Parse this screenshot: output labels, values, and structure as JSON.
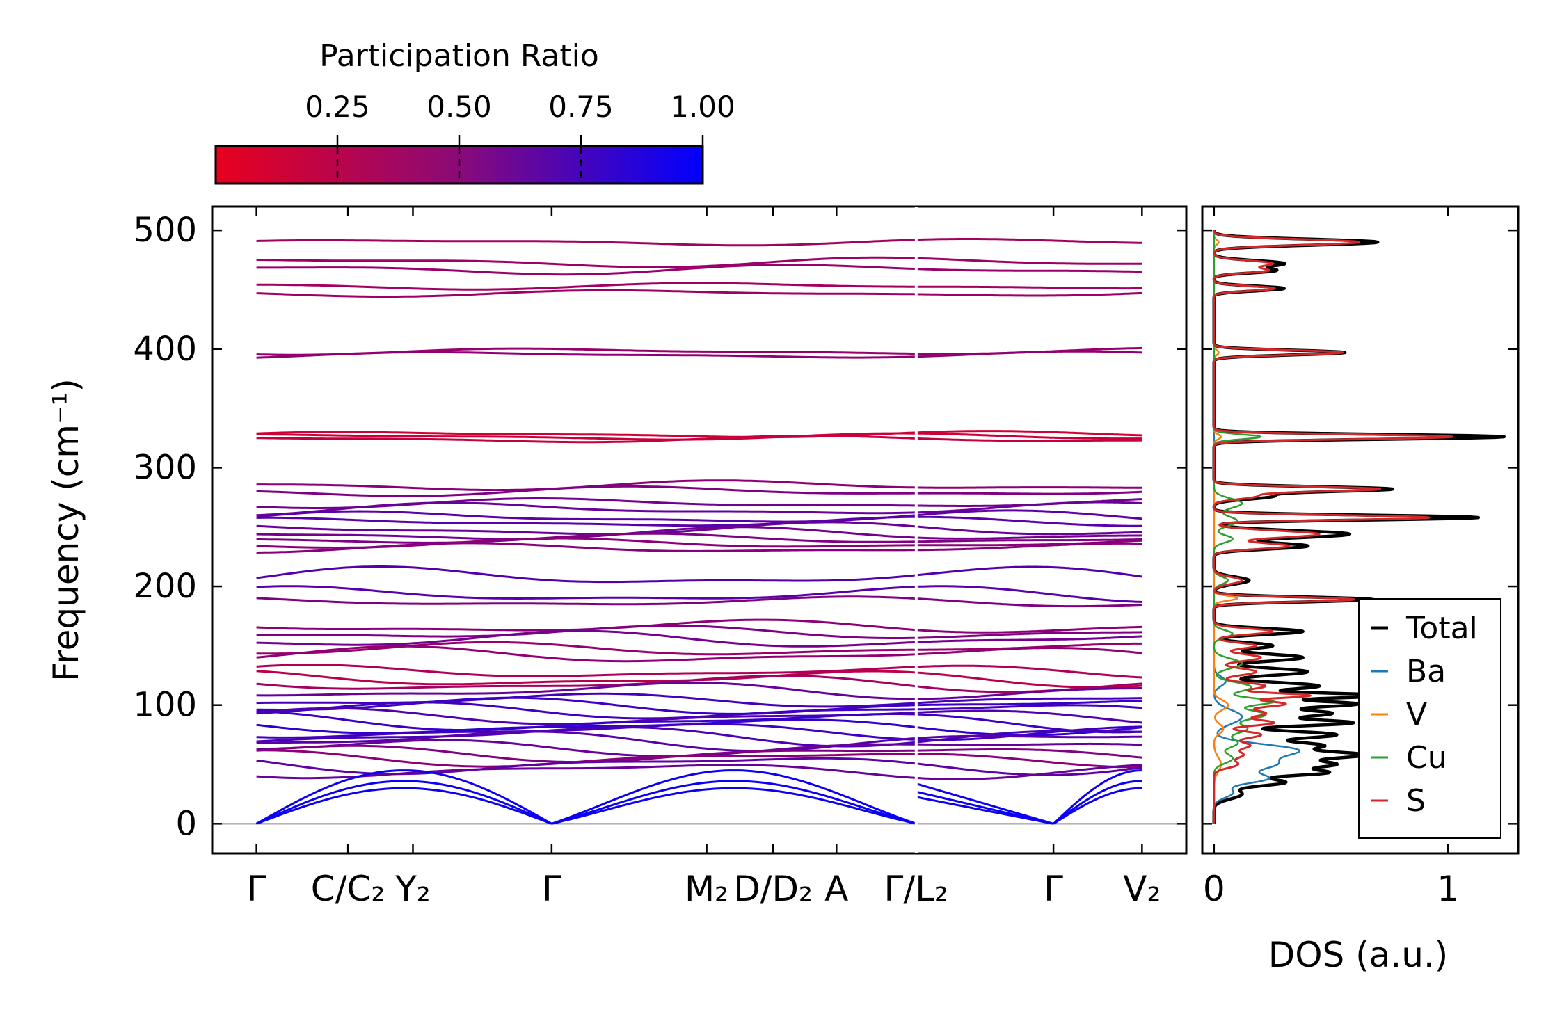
{
  "colorbar": {
    "title": "Participation Ratio",
    "min": 0.0,
    "max": 1.0,
    "ticks": [
      0.25,
      0.5,
      0.75,
      1.0
    ],
    "tick_labels": [
      "0.25",
      "0.50",
      "0.75",
      "1.00"
    ],
    "color_low": "#e8001e",
    "color_high": "#0000ff"
  },
  "colors": {
    "total": "#000000",
    "Ba": "#1f77b4",
    "V": "#ff7f0e",
    "Cu": "#2ca02c",
    "S": "#d62728",
    "zero_line": "#888888"
  },
  "chart_data": [
    {
      "type": "line",
      "name": "phonon-band-structure",
      "ylabel": "Frequency (cm⁻¹)",
      "ylim": [
        -25,
        520
      ],
      "yticks": [
        0,
        100,
        200,
        300,
        400,
        500
      ],
      "ytick_labels": [
        "0",
        "100",
        "200",
        "300",
        "400",
        "500"
      ],
      "xlim": [
        -0.3,
        6.3
      ],
      "x_end": 6.0,
      "segment_break": 4.47,
      "kpath": [
        {
          "x": 0.0,
          "label": "Γ"
        },
        {
          "x": 0.62,
          "label": "C/C₂"
        },
        {
          "x": 1.06,
          "label": "Y₂"
        },
        {
          "x": 2.0,
          "label": "Γ"
        },
        {
          "x": 3.05,
          "label": "M₂"
        },
        {
          "x": 3.5,
          "label": "D/D₂"
        },
        {
          "x": 3.93,
          "label": "A"
        },
        {
          "x": 4.47,
          "label": "Γ/L₂"
        },
        {
          "x": 5.4,
          "label": "Γ"
        },
        {
          "x": 6.0,
          "label": "V₂"
        }
      ],
      "optical_bands": {
        "description": "Representative optical branches: base frequency (cm^-1), dispersion amplitude, participation ratio",
        "base_freq": [
          490,
          473,
          467,
          453,
          447,
          398,
          395,
          328,
          326,
          324,
          285,
          280,
          270,
          265,
          258,
          254,
          248,
          244,
          240,
          236,
          232,
          208,
          193,
          187,
          166,
          161,
          155,
          147,
          142,
          128,
          122,
          118,
          112,
          104,
          99,
          95,
          90,
          86,
          82,
          78,
          74,
          70,
          64,
          59,
          55,
          50,
          45
        ],
        "amplitude": [
          2,
          3,
          3,
          2,
          2,
          2,
          2,
          2,
          2,
          2,
          3,
          3,
          3,
          4,
          4,
          3,
          4,
          4,
          3,
          3,
          3,
          6,
          5,
          3,
          4,
          4,
          5,
          4,
          5,
          4,
          5,
          5,
          5,
          4,
          5,
          5,
          5,
          6,
          5,
          5,
          6,
          6,
          5,
          5,
          5,
          6,
          5
        ],
        "participation": [
          0.3,
          0.32,
          0.35,
          0.3,
          0.32,
          0.35,
          0.38,
          0.1,
          0.12,
          0.15,
          0.4,
          0.45,
          0.5,
          0.55,
          0.6,
          0.62,
          0.55,
          0.5,
          0.45,
          0.4,
          0.42,
          0.65,
          0.62,
          0.45,
          0.4,
          0.45,
          0.5,
          0.35,
          0.38,
          0.25,
          0.2,
          0.3,
          0.55,
          0.7,
          0.75,
          0.72,
          0.65,
          0.75,
          0.8,
          0.72,
          0.68,
          0.62,
          0.55,
          0.45,
          0.4,
          0.6,
          0.55
        ]
      },
      "acoustic_bands": {
        "description": "Acoustic branches vanishing at Gamma points, max frequency near zone boundary",
        "max_freq": [
          45,
          36,
          30
        ],
        "participation": [
          0.95,
          0.95,
          0.95
        ],
        "gamma_points": [
          0.0,
          2.0,
          4.47,
          5.4
        ]
      }
    },
    {
      "type": "line",
      "name": "density-of-states",
      "xlabel": "DOS (a.u.)",
      "xlim": [
        -0.05,
        1.3
      ],
      "xticks": [
        0,
        1
      ],
      "xtick_labels": [
        "0",
        "1"
      ],
      "ylim": [
        -25,
        520
      ],
      "legend_position": "lower-right",
      "legend": [
        "Total",
        "Ba",
        "V",
        "Cu",
        "S"
      ],
      "peaks": {
        "Total": [
          [
            490,
            0.7,
            2.5
          ],
          [
            472,
            0.3,
            2.5
          ],
          [
            466,
            0.25,
            2.0
          ],
          [
            451,
            0.3,
            2.0
          ],
          [
            397,
            0.56,
            2.0
          ],
          [
            326,
            1.24,
            2.0
          ],
          [
            282,
            0.75,
            2.0
          ],
          [
            276,
            0.25,
            2.5
          ],
          [
            258,
            1.13,
            2.0
          ],
          [
            244,
            0.58,
            3.0
          ],
          [
            234,
            0.4,
            2.5
          ],
          [
            205,
            0.15,
            3.0
          ],
          [
            189,
            0.68,
            2.0
          ],
          [
            162,
            0.38,
            2.5
          ],
          [
            150,
            0.25,
            2.5
          ],
          [
            140,
            0.38,
            3.0
          ],
          [
            128,
            0.4,
            3.0
          ],
          [
            116,
            0.45,
            3.0
          ],
          [
            108,
            0.72,
            2.0
          ],
          [
            101,
            0.6,
            2.5
          ],
          [
            93,
            0.5,
            3.0
          ],
          [
            85,
            0.58,
            2.5
          ],
          [
            75,
            0.52,
            3.0
          ],
          [
            66,
            0.45,
            3.0
          ],
          [
            58,
            0.62,
            3.0
          ],
          [
            50,
            0.5,
            3.0
          ],
          [
            43,
            0.45,
            2.5
          ],
          [
            35,
            0.3,
            3.0
          ],
          [
            25,
            0.12,
            4.0
          ]
        ],
        "Ba": [
          [
            120,
            0.05,
            4.0
          ],
          [
            90,
            0.12,
            6.0
          ],
          [
            62,
            0.35,
            5.0
          ],
          [
            50,
            0.25,
            5.0
          ],
          [
            38,
            0.22,
            4.0
          ],
          [
            26,
            0.08,
            4.0
          ]
        ],
        "V": [
          [
            490,
            0.02,
            2.0
          ],
          [
            397,
            0.02,
            2.0
          ],
          [
            326,
            0.03,
            2.0
          ],
          [
            190,
            0.1,
            2.0
          ],
          [
            100,
            0.06,
            4.0
          ],
          [
            80,
            0.04,
            4.0
          ],
          [
            50,
            0.03,
            6.0
          ]
        ],
        "Cu": [
          [
            326,
            0.2,
            2.0
          ],
          [
            270,
            0.12,
            4.0
          ],
          [
            255,
            0.1,
            4.0
          ],
          [
            240,
            0.08,
            3.0
          ],
          [
            205,
            0.06,
            3.0
          ],
          [
            160,
            0.08,
            3.0
          ],
          [
            135,
            0.12,
            4.0
          ],
          [
            115,
            0.16,
            4.0
          ],
          [
            103,
            0.25,
            3.0
          ],
          [
            92,
            0.22,
            4.0
          ],
          [
            80,
            0.14,
            4.0
          ],
          [
            68,
            0.1,
            4.0
          ],
          [
            55,
            0.08,
            4.0
          ]
        ],
        "S": [
          [
            490,
            0.62,
            2.5
          ],
          [
            472,
            0.25,
            2.5
          ],
          [
            466,
            0.22,
            2.0
          ],
          [
            451,
            0.26,
            2.0
          ],
          [
            397,
            0.55,
            2.0
          ],
          [
            326,
            1.02,
            2.0
          ],
          [
            282,
            0.7,
            2.0
          ],
          [
            276,
            0.18,
            2.5
          ],
          [
            258,
            0.92,
            2.0
          ],
          [
            244,
            0.45,
            3.0
          ],
          [
            234,
            0.32,
            2.5
          ],
          [
            205,
            0.12,
            3.0
          ],
          [
            189,
            0.6,
            2.0
          ],
          [
            162,
            0.25,
            2.5
          ],
          [
            150,
            0.18,
            2.5
          ],
          [
            140,
            0.2,
            3.0
          ],
          [
            128,
            0.18,
            3.0
          ],
          [
            116,
            0.22,
            3.0
          ],
          [
            108,
            0.4,
            2.0
          ],
          [
            101,
            0.3,
            2.5
          ],
          [
            93,
            0.22,
            3.0
          ],
          [
            85,
            0.25,
            2.5
          ],
          [
            75,
            0.2,
            3.0
          ],
          [
            66,
            0.15,
            3.0
          ],
          [
            58,
            0.12,
            3.0
          ],
          [
            50,
            0.1,
            3.0
          ]
        ]
      }
    }
  ]
}
